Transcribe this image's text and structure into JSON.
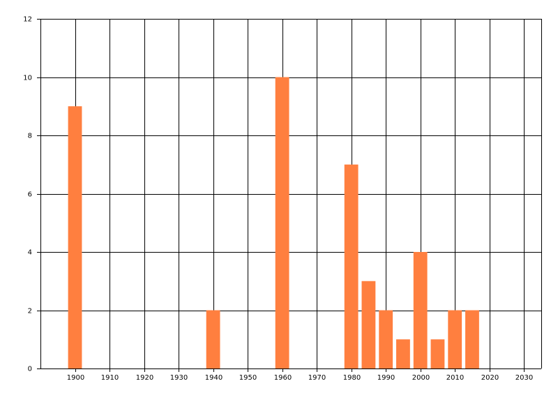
{
  "chart_data": {
    "type": "bar",
    "x": [
      1900,
      1940,
      1960,
      1980,
      1985,
      1990,
      1995,
      2000,
      2005,
      2010,
      2015
    ],
    "values": [
      9,
      2,
      10,
      7,
      3,
      2,
      1,
      4,
      1,
      2,
      2
    ],
    "color": "#ff7f3f",
    "xlim": [
      1890,
      2035
    ],
    "xticks": [
      1900,
      1910,
      1920,
      1930,
      1940,
      1950,
      1960,
      1970,
      1980,
      1990,
      2000,
      2010,
      2020,
      2030
    ],
    "ylim": [
      0,
      12
    ],
    "yticks": [
      0,
      2,
      4,
      6,
      8,
      10,
      12
    ],
    "grid": true
  }
}
